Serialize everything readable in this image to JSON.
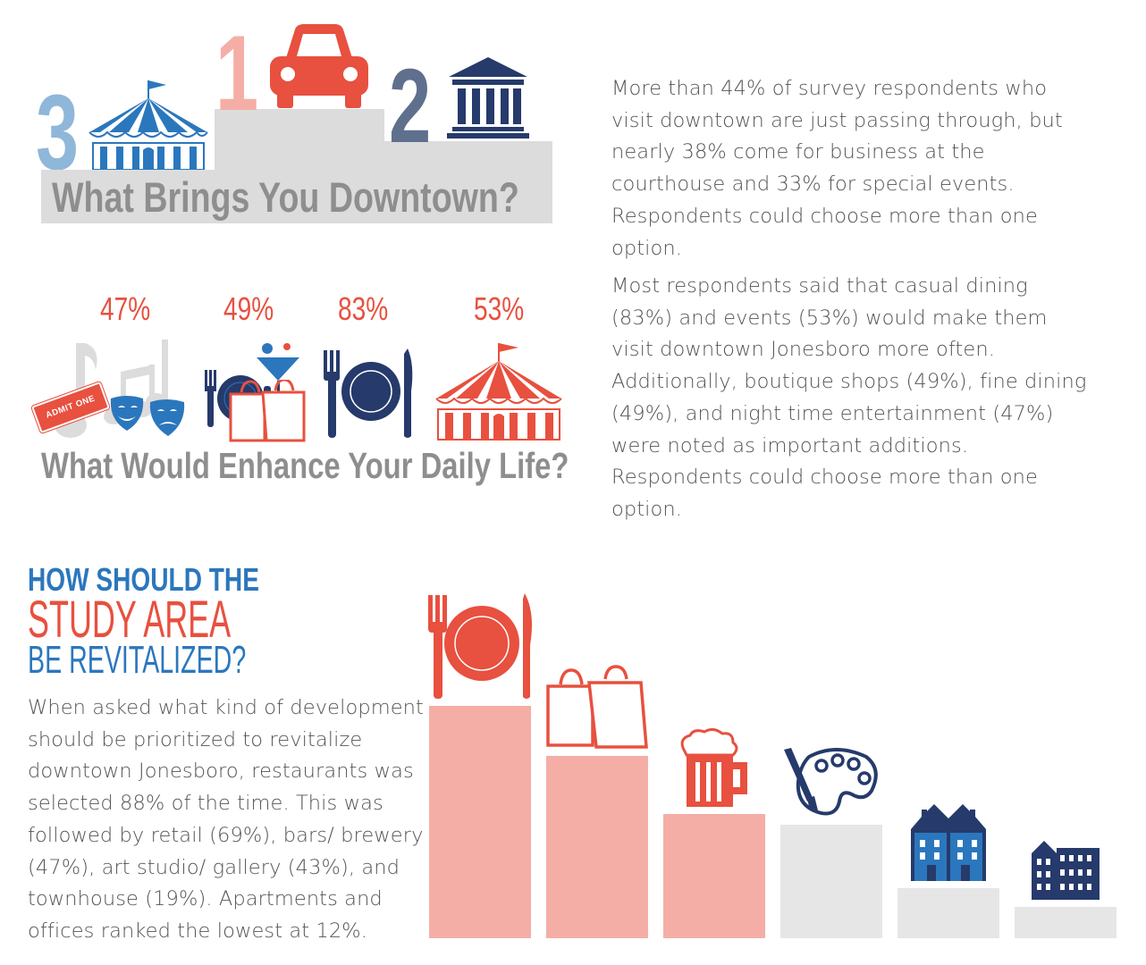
{
  "section1": {
    "heading": "What Brings You Downtown?",
    "podium_ranks": [
      "1",
      "2",
      "3"
    ],
    "text": "More than 44% of survey respondents who visit downtown are just passing through, but nearly 38% come for business at the courthouse and 33% for special events.  Respondents could choose more than one option."
  },
  "section2": {
    "heading": "What Would Enhance Your Daily Life?",
    "percentages": [
      "47%",
      "49%",
      "83%",
      "53%"
    ],
    "ticket_label": "ADMIT ONE",
    "text": "Most respondents said that casual dining (83%) and events (53%) would make them visit downtown Jonesboro more often. Additionally, boutique shops (49%), fine dining (49%), and night time entertainment (47%) were noted as important additions. Respondents could choose more than one option."
  },
  "section3": {
    "heading_line1": "HOW SHOULD THE",
    "heading_line2": "STUDY AREA",
    "heading_line3": "BE REVITALIZED?",
    "text": "When asked what kind of development should be prioritized to revitalize downtown Jonesboro, restaurants was selected 88% of the time. This was followed by retail (69%), bars/ brewery (47%), art studio/ gallery (43%), and townhouse (19%). Apartments and offices ranked the lowest at 12%.",
    "bars": [
      {
        "category": "restaurants",
        "value": 88,
        "icon": "fork-plate-knife-icon",
        "color": "#f4aea6"
      },
      {
        "category": "retail",
        "value": 69,
        "icon": "shopping-bags-icon",
        "color": "#f4aea6"
      },
      {
        "category": "bars/ brewery",
        "value": 47,
        "icon": "beer-mug-icon",
        "color": "#f4aea6"
      },
      {
        "category": "art studio/ gallery",
        "value": 43,
        "icon": "paint-palette-icon",
        "color": "#e6e6e6"
      },
      {
        "category": "townhouse",
        "value": 19,
        "icon": "townhouse-icon",
        "color": "#e6e6e6"
      },
      {
        "category": "apartments and offices",
        "value": 12,
        "icon": "office-building-icon",
        "color": "#e6e6e6"
      }
    ]
  },
  "colors": {
    "red": "#e8503f",
    "light_red": "#f4aea6",
    "navy": "#263a6b",
    "blue": "#2b77bd",
    "light_blue": "#8fb7d9",
    "grey_text": "#555555",
    "heading_grey": "#8e8e8e",
    "podium_grey": "#dcdcdc"
  }
}
